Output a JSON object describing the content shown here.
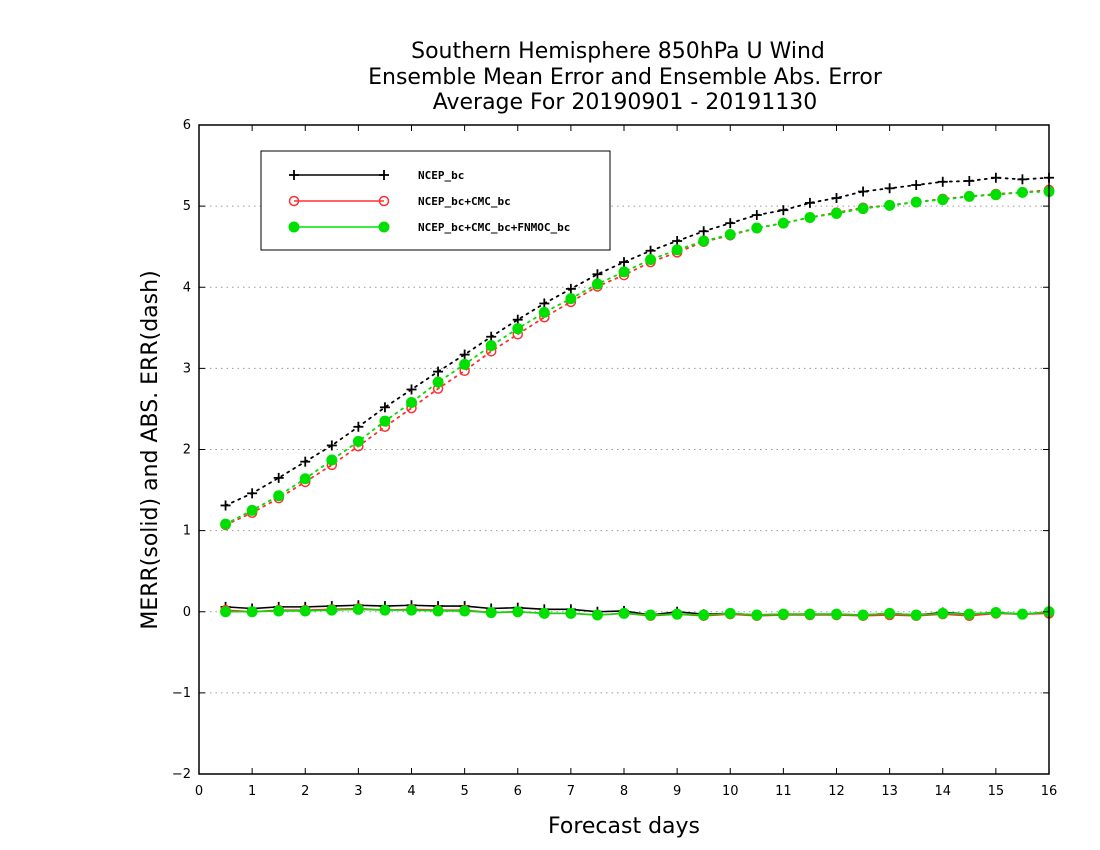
{
  "chart_data": {
    "type": "line",
    "title": [
      "Southern Hemisphere 850hPa U Wind",
      "Ensemble Mean Error and Ensemble Abs. Error",
      "Average For 20190901 - 20191130"
    ],
    "xlabel": "Forecast days",
    "ylabel": "MERR(solid) and ABS. ERR(dash)",
    "xlim": [
      0,
      16
    ],
    "ylim": [
      -2,
      6
    ],
    "xticks": [
      0,
      1,
      2,
      3,
      4,
      5,
      6,
      7,
      8,
      9,
      10,
      11,
      12,
      13,
      14,
      15,
      16
    ],
    "yticks": [
      -2,
      -1,
      0,
      1,
      2,
      3,
      4,
      5,
      6
    ],
    "grid": "horizontal dotted",
    "legend_position": "top-left",
    "x": [
      0.5,
      1.0,
      1.5,
      2.0,
      2.5,
      3.0,
      3.5,
      4.0,
      4.5,
      5.0,
      5.5,
      6.0,
      6.5,
      7.0,
      7.5,
      8.0,
      8.5,
      9.0,
      9.5,
      10.0,
      10.5,
      11.0,
      11.5,
      12.0,
      12.5,
      13.0,
      13.5,
      14.0,
      14.5,
      15.0,
      15.5,
      16.0
    ],
    "series": [
      {
        "name": "NCEP_bc",
        "color": "#000000",
        "marker": "plus",
        "merr": [
          0.06,
          0.04,
          0.06,
          0.06,
          0.07,
          0.08,
          0.07,
          0.08,
          0.07,
          0.07,
          0.04,
          0.05,
          0.03,
          0.03,
          0.0,
          0.01,
          -0.04,
          0.0,
          -0.03,
          -0.02,
          -0.04,
          -0.03,
          -0.03,
          -0.03,
          -0.04,
          -0.02,
          -0.04,
          -0.01,
          -0.03,
          -0.01,
          -0.03,
          -0.01
        ],
        "abs_err": [
          1.31,
          1.46,
          1.65,
          1.85,
          2.05,
          2.28,
          2.52,
          2.74,
          2.96,
          3.17,
          3.39,
          3.6,
          3.8,
          3.98,
          4.16,
          4.31,
          4.45,
          4.57,
          4.69,
          4.79,
          4.89,
          4.95,
          5.04,
          5.1,
          5.18,
          5.22,
          5.26,
          5.3,
          5.31,
          5.35,
          5.33,
          5.35
        ]
      },
      {
        "name": "NCEP_bc+CMC_bc",
        "color": "#ff3030",
        "marker": "open-circle",
        "merr": [
          0.02,
          0.0,
          0.02,
          0.02,
          0.03,
          0.04,
          0.02,
          0.03,
          0.02,
          0.02,
          -0.01,
          0.0,
          -0.02,
          -0.02,
          -0.04,
          -0.02,
          -0.05,
          -0.03,
          -0.05,
          -0.03,
          -0.05,
          -0.04,
          -0.04,
          -0.04,
          -0.05,
          -0.04,
          -0.05,
          -0.03,
          -0.05,
          -0.02,
          -0.03,
          -0.02
        ],
        "abs_err": [
          1.07,
          1.22,
          1.4,
          1.6,
          1.81,
          2.04,
          2.28,
          2.51,
          2.75,
          2.97,
          3.21,
          3.42,
          3.63,
          3.82,
          4.01,
          4.15,
          4.31,
          4.43,
          4.56,
          4.64,
          4.73,
          4.79,
          4.86,
          4.92,
          4.98,
          5.01,
          5.05,
          5.09,
          5.12,
          5.15,
          5.17,
          5.2
        ]
      },
      {
        "name": "NCEP_bc+CMC_bc+FNMOC_bc",
        "color": "#00e000",
        "marker": "filled-circle",
        "merr": [
          0.0,
          0.0,
          0.01,
          0.01,
          0.02,
          0.03,
          0.02,
          0.02,
          0.01,
          0.01,
          -0.01,
          0.0,
          -0.02,
          -0.02,
          -0.04,
          -0.02,
          -0.04,
          -0.03,
          -0.04,
          -0.02,
          -0.04,
          -0.03,
          -0.03,
          -0.03,
          -0.04,
          -0.02,
          -0.04,
          -0.02,
          -0.03,
          -0.01,
          -0.03,
          0.0
        ],
        "abs_err": [
          1.08,
          1.25,
          1.43,
          1.64,
          1.87,
          2.1,
          2.35,
          2.58,
          2.83,
          3.05,
          3.28,
          3.49,
          3.69,
          3.86,
          4.04,
          4.19,
          4.34,
          4.46,
          4.57,
          4.65,
          4.73,
          4.79,
          4.86,
          4.91,
          4.97,
          5.01,
          5.05,
          5.08,
          5.12,
          5.14,
          5.17,
          5.18
        ]
      }
    ]
  }
}
